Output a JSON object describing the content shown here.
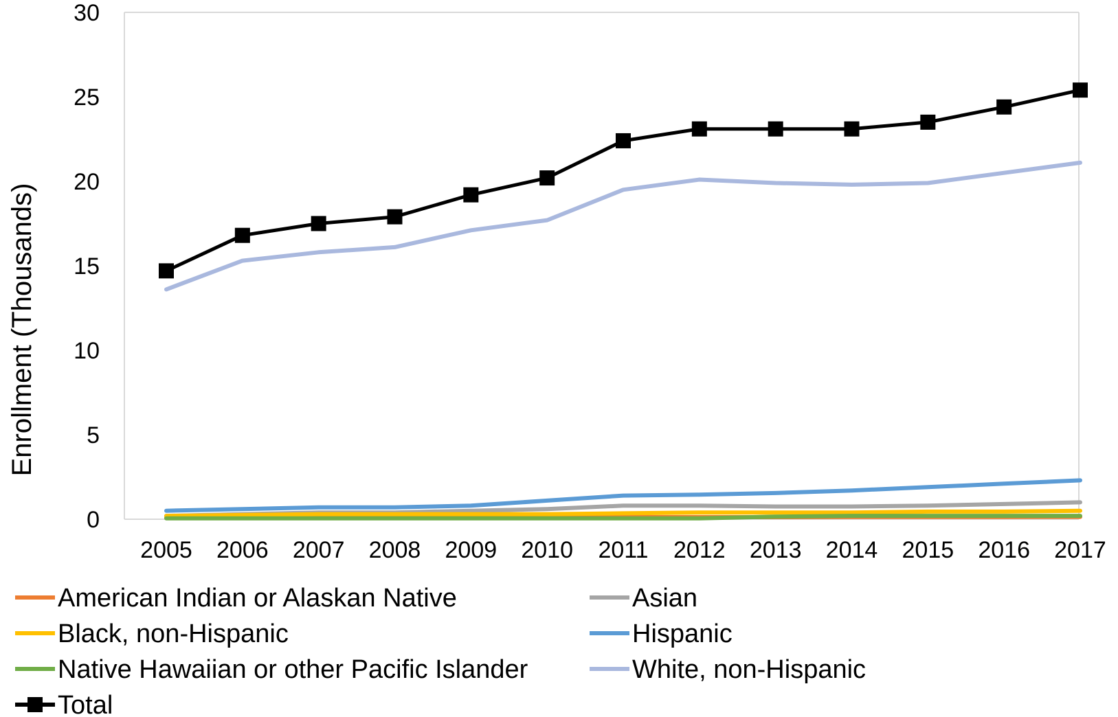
{
  "chart_data": {
    "type": "line",
    "title": "",
    "xlabel": "",
    "ylabel": "Enrollment (Thousands)",
    "ylim": [
      0,
      30
    ],
    "yticks": [
      0,
      5,
      10,
      15,
      20,
      25,
      30
    ],
    "grid": false,
    "legend_position": "bottom",
    "categories": [
      "2005",
      "2006",
      "2007",
      "2008",
      "2009",
      "2010",
      "2011",
      "2012",
      "2013",
      "2014",
      "2015",
      "2016",
      "2017"
    ],
    "series": [
      {
        "name": "American Indian or Alaskan Native",
        "color": "#ED7D31",
        "marker": "none",
        "values": [
          0.1,
          0.1,
          0.1,
          0.1,
          0.1,
          0.1,
          0.12,
          0.12,
          0.12,
          0.13,
          0.13,
          0.13,
          0.14
        ]
      },
      {
        "name": "Asian",
        "color": "#A5A5A5",
        "marker": "none",
        "values": [
          0.2,
          0.3,
          0.4,
          0.4,
          0.5,
          0.6,
          0.8,
          0.8,
          0.75,
          0.75,
          0.8,
          0.9,
          1.0
        ]
      },
      {
        "name": "Black, non-Hispanic",
        "color": "#FFC000",
        "marker": "none",
        "values": [
          0.2,
          0.25,
          0.3,
          0.3,
          0.3,
          0.3,
          0.35,
          0.4,
          0.4,
          0.4,
          0.45,
          0.45,
          0.5
        ]
      },
      {
        "name": "Hispanic",
        "color": "#5B9BD5",
        "marker": "none",
        "values": [
          0.5,
          0.6,
          0.7,
          0.7,
          0.8,
          1.1,
          1.4,
          1.45,
          1.55,
          1.7,
          1.9,
          2.1,
          2.3
        ]
      },
      {
        "name": "Native Hawaiian or other Pacific Islander",
        "color": "#70AD47",
        "marker": "none",
        "values": [
          0.05,
          0.05,
          0.05,
          0.05,
          0.05,
          0.05,
          0.05,
          0.05,
          0.15,
          0.2,
          0.2,
          0.2,
          0.2
        ]
      },
      {
        "name": "White, non-Hispanic",
        "color": "#A9B8DE",
        "marker": "none",
        "values": [
          13.6,
          15.3,
          15.8,
          16.1,
          17.1,
          17.7,
          19.5,
          20.1,
          19.9,
          19.8,
          19.9,
          20.5,
          21.1
        ]
      },
      {
        "name": "Total",
        "color": "#000000",
        "marker": "square",
        "values": [
          14.7,
          16.8,
          17.5,
          17.9,
          19.2,
          20.2,
          22.4,
          23.1,
          23.1,
          23.1,
          23.5,
          24.4,
          25.4
        ]
      }
    ]
  }
}
